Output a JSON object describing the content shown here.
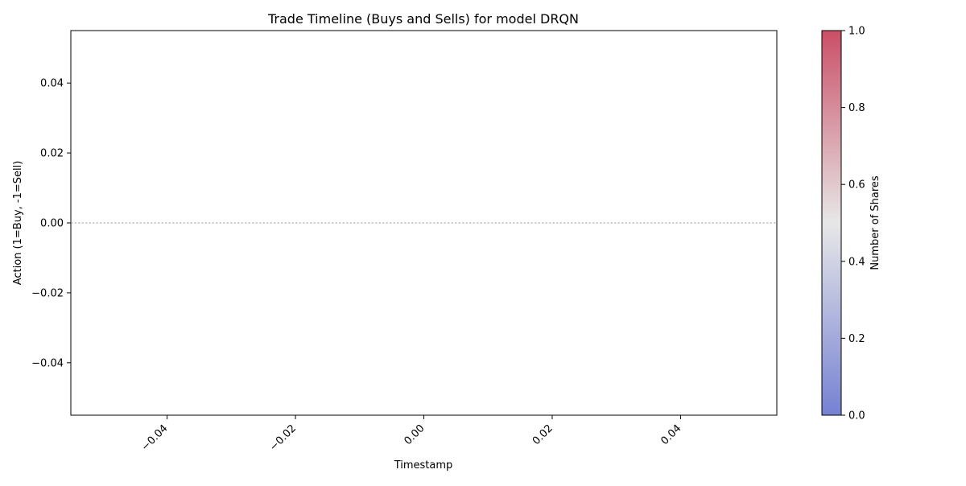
{
  "chart_data": {
    "type": "scatter",
    "title": "Trade Timeline (Buys and Sells) for model DRQN",
    "xlabel": "Timestamp",
    "ylabel": "Action (1=Buy, -1=Sell)",
    "xlim": [
      -0.055,
      0.055
    ],
    "ylim": [
      -0.055,
      0.055
    ],
    "xticks": [
      -0.04,
      -0.02,
      0.0,
      0.02,
      0.04
    ],
    "xtick_labels": [
      "−0.04",
      "−0.02",
      "0.00",
      "0.02",
      "0.04"
    ],
    "yticks": [
      0.04,
      0.02,
      0.0,
      -0.02,
      -0.04
    ],
    "ytick_labels": [
      "0.04",
      "0.02",
      "0.00",
      "−0.02",
      "−0.04"
    ],
    "xtick_rotation_deg": 45,
    "grid": false,
    "reference_line": {
      "y": 0,
      "style": "dashed",
      "color": "#808080"
    },
    "points": [],
    "colorbar": {
      "label": "Number of Shares",
      "range": [
        0.0,
        1.0
      ],
      "ticks": [
        0.0,
        0.2,
        0.4,
        0.6,
        0.8,
        1.0
      ],
      "tick_labels": [
        "0.0",
        "0.2",
        "0.4",
        "0.6",
        "0.8",
        "1.0"
      ],
      "colormap": "coolwarm",
      "color_low": "#3b4cc0",
      "color_mid": "#dddddd",
      "color_high": "#b40426",
      "alpha": 0.7
    }
  }
}
